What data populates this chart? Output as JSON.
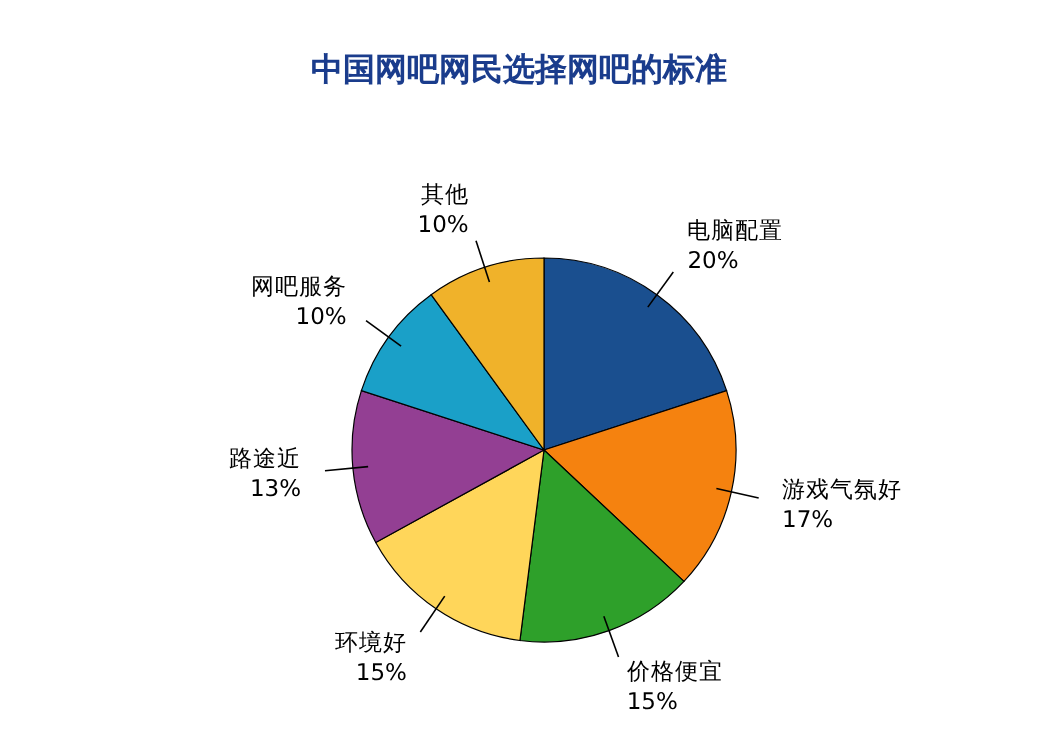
{
  "chart_data": {
    "type": "pie",
    "title": "中国网吧网民选择网吧的标准",
    "categories": [
      "电脑配置",
      "游戏气氛好",
      "价格便宜",
      "环境好",
      "路途近",
      "网吧服务",
      "其他"
    ],
    "values": [
      20,
      17,
      15,
      15,
      13,
      10,
      10
    ],
    "value_labels": [
      "20%",
      "17%",
      "15%",
      "15%",
      "13%",
      "10%",
      "10%"
    ],
    "colors": [
      "#1a4f8f",
      "#f5820f",
      "#2ea02a",
      "#ffd65a",
      "#933f93",
      "#1aa0c8",
      "#f0b22a"
    ]
  }
}
